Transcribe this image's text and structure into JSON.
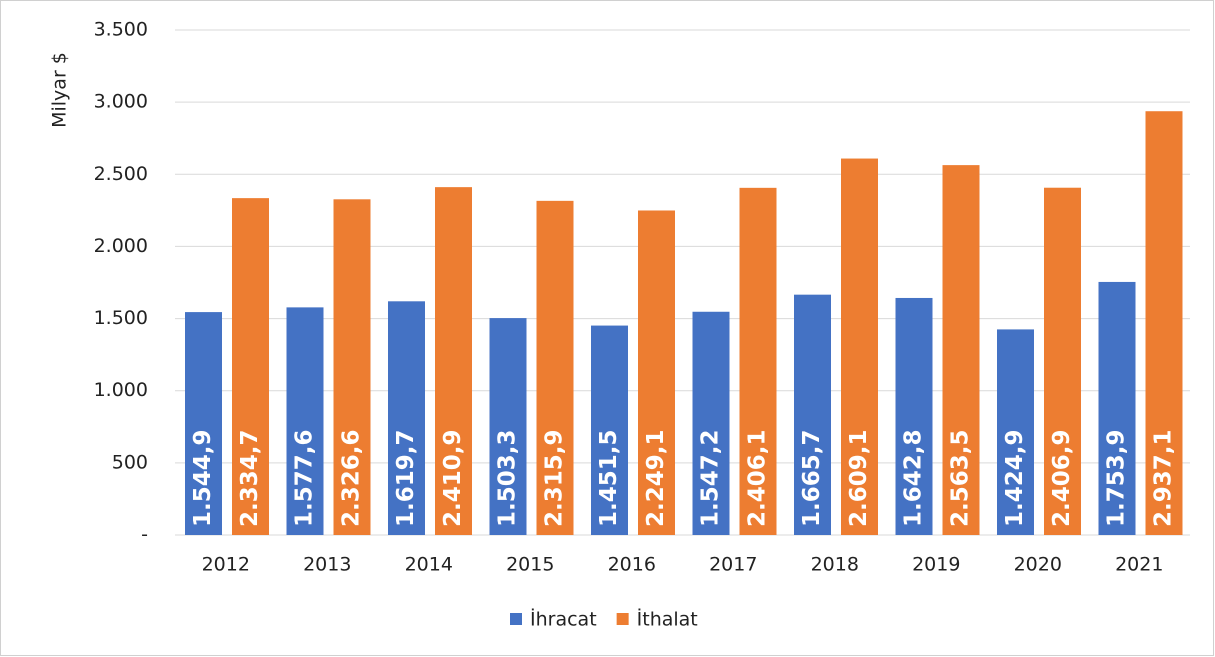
{
  "chart_data": {
    "type": "bar",
    "y_label": "Milyar $",
    "categories": [
      "2012",
      "2013",
      "2014",
      "2015",
      "2016",
      "2017",
      "2018",
      "2019",
      "2020",
      "2021"
    ],
    "series": [
      {
        "name": "İhracat",
        "color": "#4472c4",
        "values": [
          1544.9,
          1577.6,
          1619.7,
          1503.3,
          1451.5,
          1547.2,
          1665.7,
          1642.8,
          1424.9,
          1753.9
        ],
        "value_labels": [
          "1.544,9",
          "1.577,6",
          "1.619,7",
          "1.503,3",
          "1.451,5",
          "1.547,2",
          "1.665,7",
          "1.642,8",
          "1.424,9",
          "1.753,9"
        ]
      },
      {
        "name": "İthalat",
        "color": "#ed7d31",
        "values": [
          2334.7,
          2326.6,
          2410.9,
          2315.9,
          2249.1,
          2406.1,
          2609.1,
          2563.5,
          2406.9,
          2937.1
        ],
        "value_labels": [
          "2.334,7",
          "2.326,6",
          "2.410,9",
          "2.315,9",
          "2.249,1",
          "2.406,1",
          "2.609,1",
          "2.563,5",
          "2.406,9",
          "2.937,1"
        ]
      }
    ],
    "ylim": [
      0,
      3500
    ],
    "yticks": [
      {
        "value": 0,
        "label": "-"
      },
      {
        "value": 500,
        "label": "500"
      },
      {
        "value": 1000,
        "label": "1.000"
      },
      {
        "value": 1500,
        "label": "1.500"
      },
      {
        "value": 2000,
        "label": "2.000"
      },
      {
        "value": 2500,
        "label": "2.500"
      },
      {
        "value": 3000,
        "label": "3.000"
      },
      {
        "value": 3500,
        "label": "3.500"
      }
    ],
    "grid": true,
    "legend": "bottom"
  }
}
